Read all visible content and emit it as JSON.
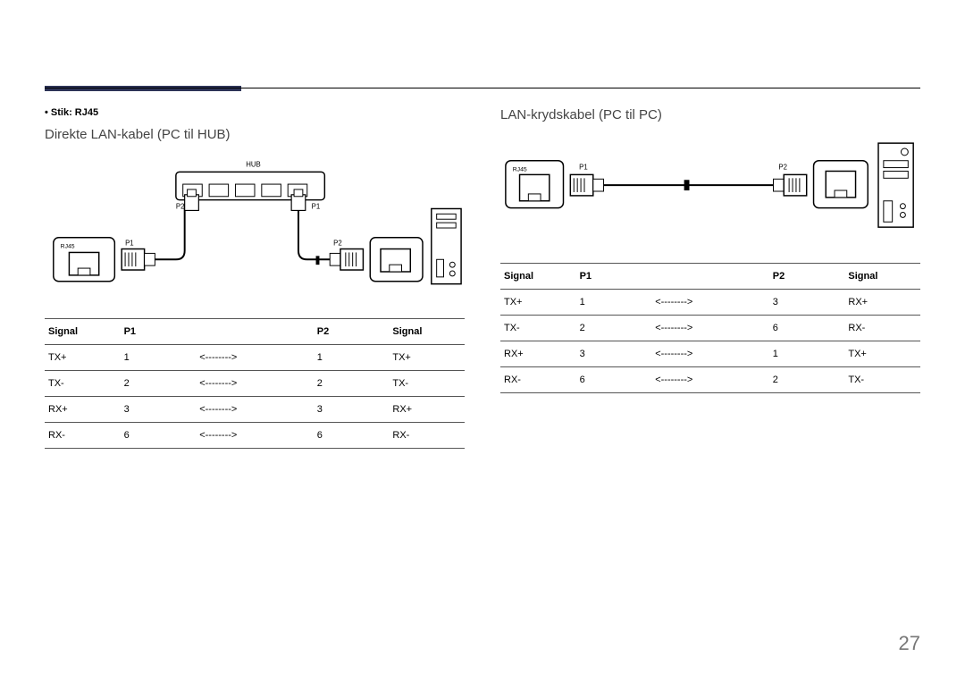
{
  "page_number": "27",
  "accent_bar_color": "#2d3357",
  "left": {
    "bullet": "• Stik: RJ45",
    "title": "Direkte LAN-kabel (PC til HUB)",
    "diagram_labels": {
      "hub": "HUB",
      "rj45": "RJ45",
      "p1": "P1",
      "p2": "P2"
    },
    "table": {
      "headers": [
        "Signal",
        "P1",
        "",
        "P2",
        "Signal"
      ],
      "rows": [
        [
          "TX+",
          "1",
          "<-------->",
          "1",
          "TX+"
        ],
        [
          "TX-",
          "2",
          "<-------->",
          "2",
          "TX-"
        ],
        [
          "RX+",
          "3",
          "<-------->",
          "3",
          "RX+"
        ],
        [
          "RX-",
          "6",
          "<-------->",
          "6",
          "RX-"
        ]
      ]
    }
  },
  "right": {
    "title": "LAN-krydskabel (PC til PC)",
    "diagram_labels": {
      "rj45": "RJ45",
      "p1": "P1",
      "p2": "P2"
    },
    "table": {
      "headers": [
        "Signal",
        "P1",
        "",
        "P2",
        "Signal"
      ],
      "rows": [
        [
          "TX+",
          "1",
          "<-------->",
          "3",
          "RX+"
        ],
        [
          "TX-",
          "2",
          "<-------->",
          "6",
          "RX-"
        ],
        [
          "RX+",
          "3",
          "<-------->",
          "1",
          "TX+"
        ],
        [
          "RX-",
          "6",
          "<-------->",
          "2",
          "TX-"
        ]
      ]
    }
  },
  "style": {
    "text_color": "#000000",
    "border_color": "#555555",
    "background": "#ffffff",
    "title_fontsize": 15,
    "body_fontsize": 11,
    "pagenum_color": "#777777",
    "col_widths_pct": [
      18,
      18,
      28,
      18,
      18
    ]
  }
}
